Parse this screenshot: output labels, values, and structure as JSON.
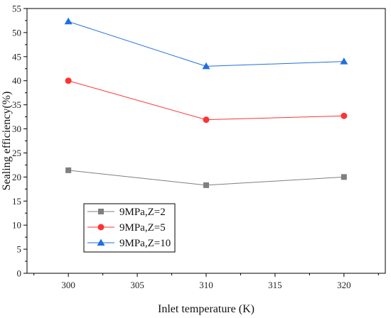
{
  "chart_data": {
    "type": "line",
    "xlabel": "Inlet temperature (K)",
    "ylabel": "Sealing efficiency(%)",
    "xlim": [
      297,
      323
    ],
    "ylim": [
      0,
      55
    ],
    "xticks": [
      300,
      305,
      310,
      315,
      320
    ],
    "yticks": [
      0,
      5,
      10,
      15,
      20,
      25,
      30,
      35,
      40,
      45,
      50,
      55
    ],
    "grid": false,
    "legend_position": "bottom-left",
    "series": [
      {
        "name": "9MPa,Z=2",
        "marker": "square",
        "color": "#7f7f7f",
        "x": [
          300,
          310,
          320
        ],
        "y": [
          21.4,
          18.3,
          20.0
        ]
      },
      {
        "name": "9MPa,Z=5",
        "marker": "circle",
        "color": "#ff3333",
        "x": [
          300,
          310,
          320
        ],
        "y": [
          40.0,
          31.9,
          32.7
        ]
      },
      {
        "name": "9MPa,Z=10",
        "marker": "triangle",
        "color": "#1f6fe0",
        "x": [
          300,
          310,
          320
        ],
        "y": [
          52.3,
          43.0,
          44.0
        ]
      }
    ]
  }
}
